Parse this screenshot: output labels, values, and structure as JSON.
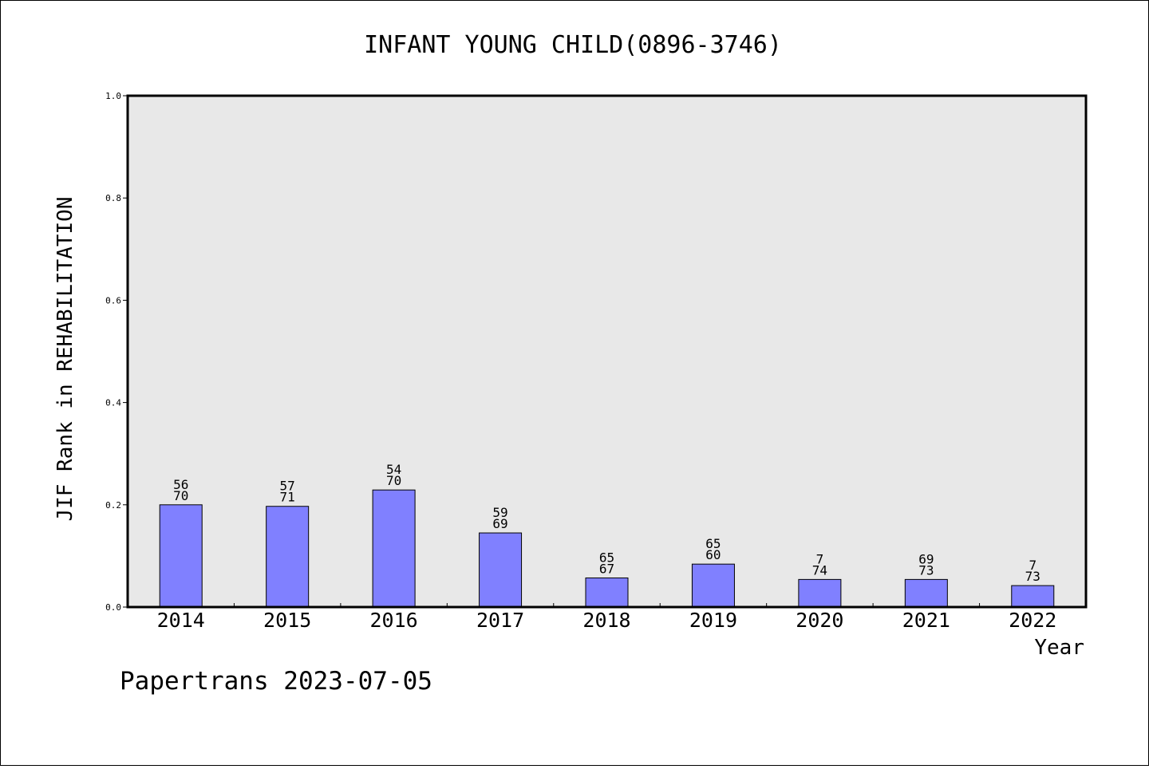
{
  "chart_data": {
    "type": "bar",
    "title": "INFANT YOUNG CHILD(0896-3746)",
    "xlabel": "Year",
    "ylabel": "JIF Rank in REHABILITATION",
    "ylim": [
      0,
      1.0
    ],
    "yticks": [
      "0.0",
      "0.2",
      "0.4",
      "0.6",
      "0.8",
      "1.0"
    ],
    "categories": [
      "2014",
      "2015",
      "2016",
      "2017",
      "2018",
      "2019",
      "2020",
      "2021",
      "2022"
    ],
    "values": [
      0.2,
      0.197,
      0.229,
      0.145,
      0.057,
      0.084,
      0.054,
      0.054,
      0.042
    ],
    "labels_top": [
      "56",
      "57",
      "54",
      "59",
      "65",
      "65",
      "7",
      "69",
      "7"
    ],
    "labels_bottom": [
      "70",
      "71",
      "70",
      "69",
      "67",
      "60",
      "74",
      "73",
      "73"
    ],
    "bar_color": "#8080ff",
    "plot_background": "#e8e8e8",
    "grid": false,
    "legend": "none"
  },
  "footer": "Papertrans 2023-07-05"
}
